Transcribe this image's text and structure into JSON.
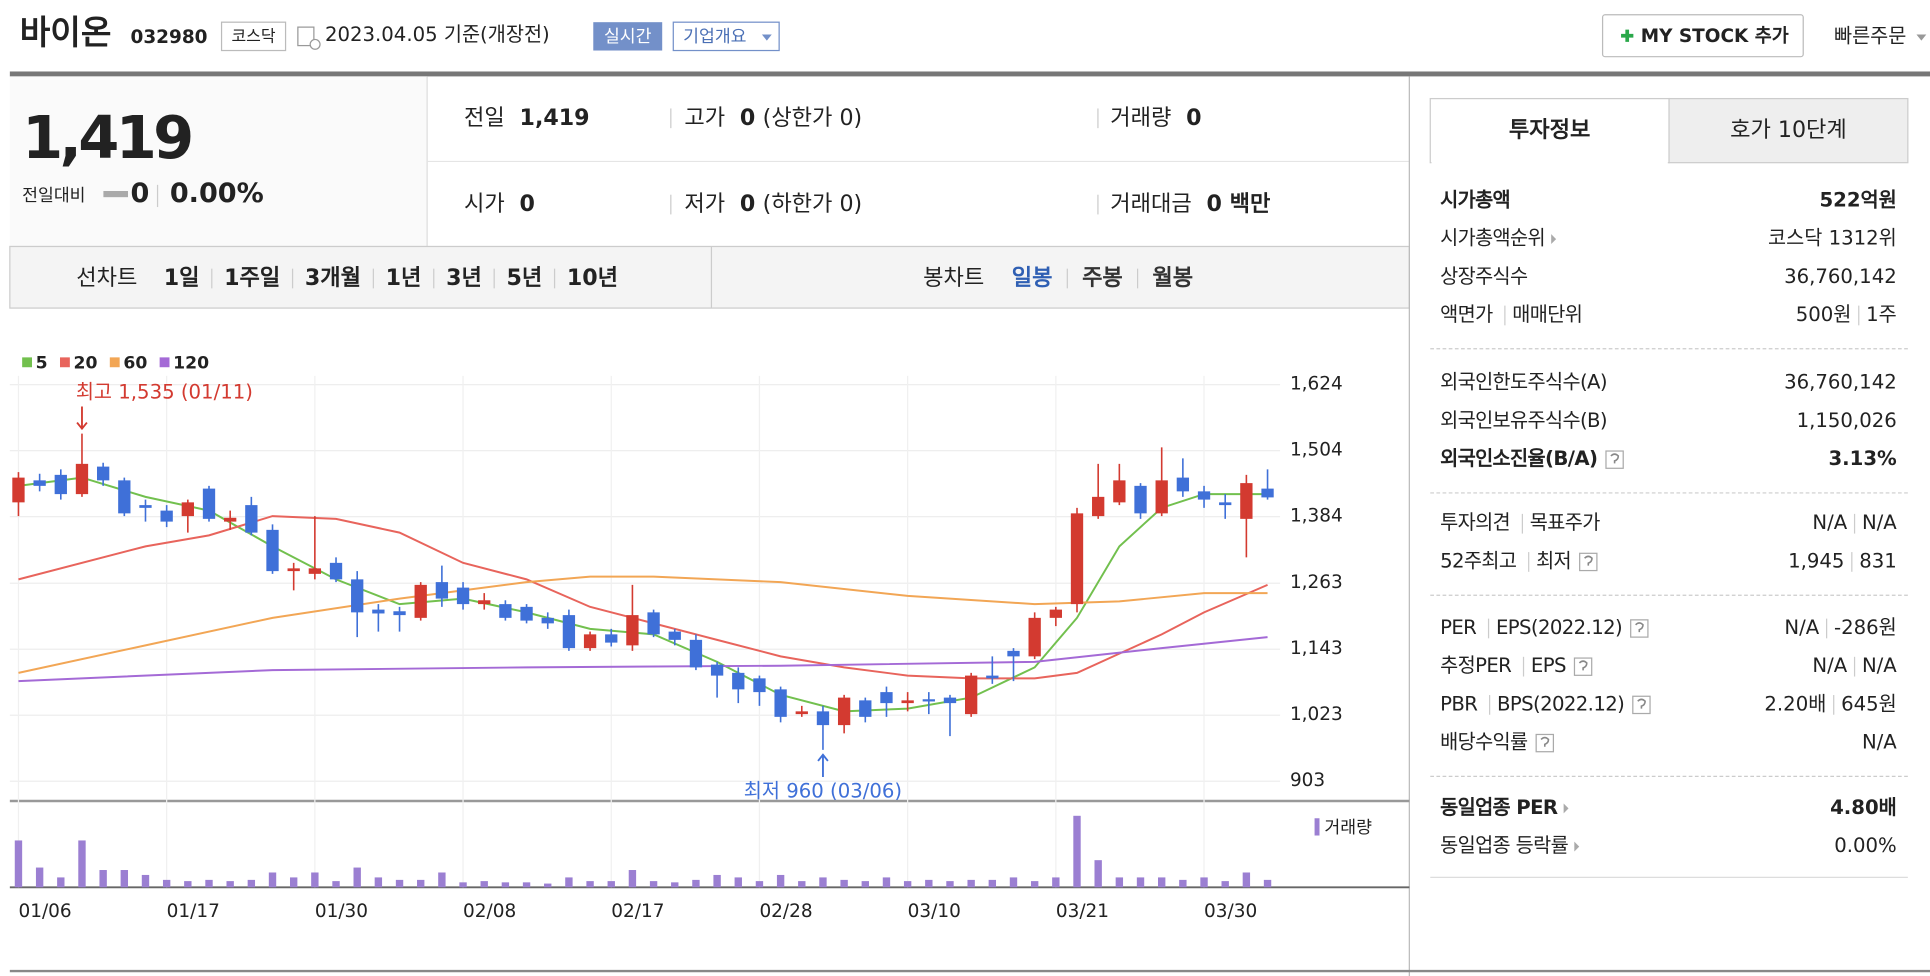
{
  "header": {
    "name": "바이온",
    "code": "032980",
    "market": "코스닥",
    "date": "2023.04.05 기준(개장전)",
    "realtime": "실시간",
    "company": "기업개요",
    "my_stock": "MY STOCK 추가",
    "quick_order": "빠른주문"
  },
  "price": {
    "current": "1,419",
    "change_label": "전일대비",
    "change": "0",
    "rate": "0.00%"
  },
  "info": [
    {
      "label": "전일",
      "value": "1,419"
    },
    {
      "label": "고가",
      "value": "0",
      "extra": "(상한가 0)"
    },
    {
      "label": "거래량",
      "value": "0"
    },
    {
      "label": "시가",
      "value": "0"
    },
    {
      "label": "저가",
      "value": "0",
      "extra": "(하한가 0)"
    },
    {
      "label": "거래대금",
      "value": "0 백만"
    }
  ],
  "period": {
    "line_label": "선차트",
    "line": [
      "1일",
      "1주일",
      "3개월",
      "1년",
      "3년",
      "5년",
      "10년"
    ],
    "candle_label": "봉차트",
    "candle": [
      "일봉",
      "주봉",
      "월봉"
    ],
    "active_candle": 0
  },
  "chart_data": {
    "type": "candlestick",
    "categories": [
      "01/06",
      null,
      null,
      null,
      null,
      null,
      null,
      "01/17",
      null,
      null,
      null,
      null,
      null,
      null,
      "01/30",
      null,
      null,
      null,
      null,
      null,
      null,
      "02/08",
      null,
      null,
      null,
      null,
      null,
      null,
      "02/17",
      null,
      null,
      null,
      null,
      null,
      null,
      "02/28",
      null,
      null,
      null,
      null,
      null,
      null,
      "03/10",
      null,
      null,
      null,
      null,
      null,
      null,
      "03/21",
      null,
      null,
      null,
      null,
      null,
      null,
      "03/30",
      null,
      null,
      null
    ],
    "open": [
      1410,
      1450,
      1460,
      1425,
      1475,
      1450,
      1405,
      1395,
      1385,
      1435,
      1375,
      1405,
      1360,
      1285,
      1280,
      1300,
      1270,
      1215,
      1212,
      1200,
      1265,
      1255,
      1225,
      1225,
      1220,
      1200,
      1205,
      1145,
      1170,
      1150,
      1210,
      1175,
      1160,
      1115,
      1100,
      1090,
      1070,
      1025,
      1030,
      1005,
      1050,
      1065,
      1045,
      1052,
      1055,
      1025,
      1095,
      1140,
      1130,
      1200,
      1225,
      1385,
      1410,
      1440,
      1390,
      1455,
      1430,
      1410,
      1380,
      1435
    ],
    "high": [
      1465,
      1462,
      1470,
      1535,
      1482,
      1455,
      1415,
      1405,
      1415,
      1440,
      1395,
      1420,
      1370,
      1300,
      1385,
      1310,
      1285,
      1225,
      1220,
      1265,
      1295,
      1265,
      1245,
      1232,
      1225,
      1210,
      1215,
      1175,
      1180,
      1260,
      1215,
      1180,
      1170,
      1120,
      1110,
      1095,
      1075,
      1040,
      1040,
      1060,
      1055,
      1075,
      1065,
      1065,
      1060,
      1100,
      1130,
      1145,
      1210,
      1220,
      1400,
      1480,
      1480,
      1445,
      1510,
      1490,
      1440,
      1425,
      1460,
      1470
    ],
    "low": [
      1385,
      1430,
      1415,
      1420,
      1440,
      1385,
      1375,
      1365,
      1355,
      1375,
      1360,
      1350,
      1280,
      1250,
      1270,
      1265,
      1165,
      1175,
      1175,
      1195,
      1220,
      1215,
      1215,
      1195,
      1190,
      1180,
      1140,
      1140,
      1148,
      1140,
      1165,
      1150,
      1105,
      1055,
      1045,
      1040,
      1010,
      1020,
      960,
      990,
      1010,
      1020,
      1030,
      1025,
      985,
      1020,
      1080,
      1085,
      1125,
      1185,
      1210,
      1380,
      1405,
      1380,
      1385,
      1420,
      1400,
      1380,
      1310,
      1415
    ],
    "close": [
      1455,
      1440,
      1425,
      1480,
      1450,
      1390,
      1400,
      1375,
      1410,
      1380,
      1382,
      1355,
      1285,
      1290,
      1290,
      1270,
      1210,
      1208,
      1205,
      1260,
      1235,
      1225,
      1232,
      1200,
      1195,
      1190,
      1145,
      1170,
      1155,
      1205,
      1170,
      1160,
      1110,
      1095,
      1070,
      1065,
      1020,
      1030,
      1005,
      1055,
      1020,
      1045,
      1050,
      1048,
      1045,
      1095,
      1090,
      1130,
      1200,
      1215,
      1390,
      1420,
      1450,
      1390,
      1450,
      1430,
      1415,
      1405,
      1445,
      1419
    ],
    "up_color": "#d33a30",
    "down_color": "#3f70d8",
    "series": [
      {
        "name": "5",
        "color": "#72c04e",
        "x": [
          0,
          3,
          6,
          9,
          12,
          15,
          18,
          21,
          24,
          27,
          30,
          33,
          36,
          39,
          42,
          45,
          48,
          50,
          52,
          54,
          56,
          59
        ],
        "values": [
          1440,
          1455,
          1420,
          1395,
          1330,
          1270,
          1225,
          1235,
          1210,
          1180,
          1170,
          1120,
          1060,
          1030,
          1035,
          1055,
          1110,
          1200,
          1330,
          1400,
          1425,
          1425
        ]
      },
      {
        "name": "20",
        "color": "#e8645c",
        "x": [
          0,
          6,
          9,
          12,
          15,
          18,
          21,
          24,
          27,
          30,
          33,
          36,
          39,
          42,
          45,
          48,
          50,
          52,
          54,
          56,
          59
        ],
        "values": [
          1270,
          1330,
          1350,
          1385,
          1380,
          1355,
          1300,
          1270,
          1220,
          1190,
          1160,
          1130,
          1110,
          1095,
          1090,
          1090,
          1100,
          1135,
          1170,
          1210,
          1260
        ]
      },
      {
        "name": "60",
        "color": "#f2a655",
        "x": [
          0,
          6,
          12,
          18,
          24,
          27,
          30,
          36,
          42,
          48,
          52,
          56,
          59
        ],
        "values": [
          1100,
          1150,
          1200,
          1235,
          1265,
          1275,
          1275,
          1265,
          1240,
          1225,
          1230,
          1245,
          1245
        ]
      },
      {
        "name": "120",
        "color": "#a46ad6",
        "x": [
          0,
          12,
          24,
          36,
          48,
          54,
          59
        ],
        "values": [
          1085,
          1105,
          1110,
          1113,
          1120,
          1145,
          1165
        ]
      }
    ],
    "annotations": {
      "high": "최고 1,535 (01/11)",
      "low": "최저 960 (03/06)"
    },
    "ylim": [
      867,
      1640
    ],
    "yticks": [
      {
        "value": 903,
        "label": "903"
      },
      {
        "value": 1023,
        "label": "1,023"
      },
      {
        "value": 1143,
        "label": "1,143"
      },
      {
        "value": 1263,
        "label": "1,263"
      },
      {
        "value": 1384,
        "label": "1,384"
      },
      {
        "value": 1504,
        "label": "1,504"
      },
      {
        "value": 1624,
        "label": "1,624"
      }
    ],
    "grid": true,
    "volume_label": "거래량",
    "volume_color": "#9b7fd2",
    "volume": [
      38,
      16,
      8,
      38,
      14,
      14,
      10,
      6,
      5,
      6,
      5,
      6,
      12,
      8,
      12,
      5,
      16,
      8,
      6,
      6,
      12,
      4,
      5,
      4,
      4,
      3,
      8,
      5,
      5,
      14,
      5,
      4,
      6,
      10,
      8,
      5,
      10,
      5,
      8,
      6,
      5,
      8,
      5,
      6,
      5,
      6,
      6,
      8,
      5,
      8,
      58,
      22,
      8,
      8,
      8,
      6,
      8,
      5,
      12,
      6
    ],
    "volume_ylim": [
      0,
      60
    ]
  },
  "side": {
    "tabs": [
      "투자정보",
      "호가 10단계"
    ],
    "active_tab": 0,
    "groups": [
      [
        {
          "label": [
            "시가총액"
          ],
          "value": [
            "522억원"
          ],
          "bold": true
        },
        {
          "label": [
            "시가총액순위"
          ],
          "value": [
            "코스닥 1312위"
          ],
          "more": true
        },
        {
          "label": [
            "상장주식수"
          ],
          "value": [
            "36,760,142"
          ]
        },
        {
          "label": [
            "액면가",
            "매매단위"
          ],
          "value": [
            "500원",
            "1주"
          ]
        }
      ],
      [
        {
          "label": [
            "외국인한도주식수(A)"
          ],
          "value": [
            "36,760,142"
          ]
        },
        {
          "label": [
            "외국인보유주식수(B)"
          ],
          "value": [
            "1,150,026"
          ]
        },
        {
          "label": [
            "외국인소진율(B/A)"
          ],
          "value": [
            "3.13%"
          ],
          "bold": true,
          "help": true
        }
      ],
      [
        {
          "label": [
            "투자의견",
            "목표주가"
          ],
          "value": [
            "N/A",
            "N/A"
          ]
        },
        {
          "label": [
            "52주최고",
            "최저"
          ],
          "value": [
            "1,945",
            "831"
          ],
          "help": true
        }
      ],
      [
        {
          "label": [
            "PER",
            "EPS(2022.12)"
          ],
          "value": [
            "N/A",
            "-286원"
          ],
          "help": true
        },
        {
          "label": [
            "추정PER",
            "EPS"
          ],
          "value": [
            "N/A",
            "N/A"
          ],
          "help": true
        },
        {
          "label": [
            "PBR",
            "BPS(2022.12)"
          ],
          "value": [
            "2.20배",
            "645원"
          ],
          "help": true
        },
        {
          "label": [
            "배당수익률"
          ],
          "value": [
            "N/A"
          ],
          "help": true
        }
      ],
      [
        {
          "label": [
            "동일업종 PER"
          ],
          "value": [
            "4.80배"
          ],
          "bold": true,
          "more": true
        },
        {
          "label": [
            "동일업종 등락률"
          ],
          "value": [
            "0.00%"
          ],
          "more": true
        }
      ]
    ]
  }
}
